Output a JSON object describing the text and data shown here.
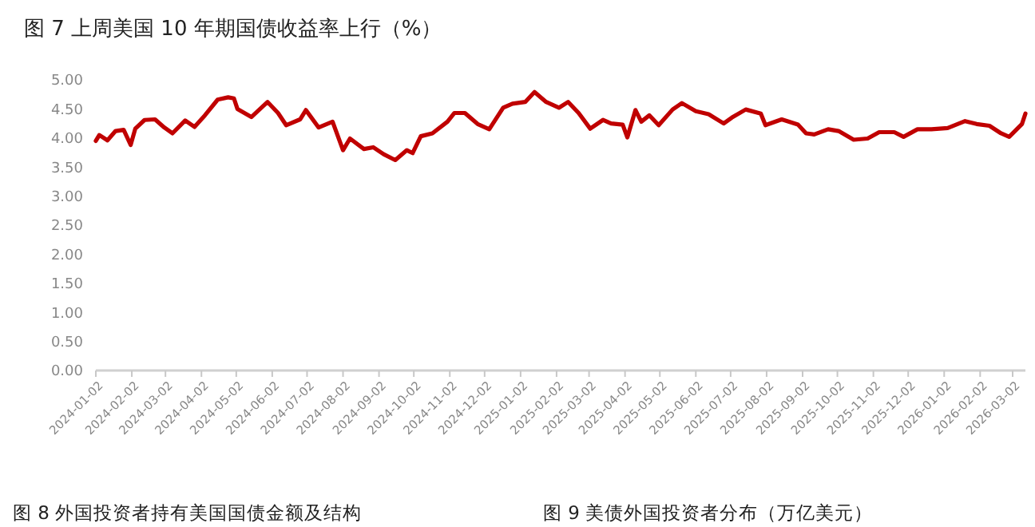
{
  "chart_data": {
    "type": "line",
    "title": "图 7  上周美国 10 年期国债收益率上行（%）",
    "x": [
      "2024-01-02",
      "2024-01-05",
      "2024-01-12",
      "2024-01-19",
      "2024-01-26",
      "2024-02-01",
      "2024-02-05",
      "2024-02-13",
      "2024-02-22",
      "2024-03-01",
      "2024-03-08",
      "2024-03-19",
      "2024-03-27",
      "2024-04-05",
      "2024-04-16",
      "2024-04-25",
      "2024-04-30",
      "2024-05-03",
      "2024-05-15",
      "2024-05-29",
      "2024-06-07",
      "2024-06-14",
      "2024-06-26",
      "2024-07-01",
      "2024-07-12",
      "2024-07-24",
      "2024-08-02",
      "2024-08-08",
      "2024-08-20",
      "2024-08-28",
      "2024-09-06",
      "2024-09-16",
      "2024-09-26",
      "2024-10-01",
      "2024-10-08",
      "2024-10-18",
      "2024-10-31",
      "2024-11-06",
      "2024-11-15",
      "2024-11-26",
      "2024-12-06",
      "2024-12-18",
      "2024-12-26",
      "2025-01-06",
      "2025-01-14",
      "2025-01-24",
      "2025-02-04",
      "2025-02-12",
      "2025-02-21",
      "2025-03-03",
      "2025-03-14",
      "2025-03-21",
      "2025-03-31",
      "2025-04-04",
      "2025-04-11",
      "2025-04-16",
      "2025-04-23",
      "2025-05-01",
      "2025-05-13",
      "2025-05-21",
      "2025-06-02",
      "2025-06-13",
      "2025-06-26",
      "2025-07-03",
      "2025-07-15",
      "2025-07-28",
      "2025-08-01",
      "2025-08-15",
      "2025-08-29",
      "2025-09-05",
      "2025-09-12",
      "2025-09-24",
      "2025-10-03",
      "2025-10-16",
      "2025-10-28",
      "2025-11-07",
      "2025-11-20",
      "2025-11-28",
      "2025-12-10",
      "2025-12-22",
      "2026-01-05",
      "2026-01-20",
      "2026-01-30",
      "2026-02-10",
      "2026-02-20",
      "2026-02-27",
      "2026-03-04",
      "2026-03-10",
      "2026-03-13"
    ],
    "series": [
      {
        "color": "#c00000",
        "values": [
          3.95,
          4.05,
          3.96,
          4.12,
          4.14,
          3.88,
          4.16,
          4.31,
          4.32,
          4.18,
          4.08,
          4.3,
          4.19,
          4.39,
          4.66,
          4.7,
          4.68,
          4.5,
          4.36,
          4.62,
          4.43,
          4.22,
          4.32,
          4.48,
          4.18,
          4.28,
          3.79,
          3.99,
          3.81,
          3.84,
          3.72,
          3.62,
          3.79,
          3.74,
          4.03,
          4.08,
          4.28,
          4.43,
          4.43,
          4.24,
          4.15,
          4.52,
          4.59,
          4.62,
          4.79,
          4.62,
          4.52,
          4.62,
          4.43,
          4.16,
          4.31,
          4.25,
          4.23,
          4.01,
          4.48,
          4.28,
          4.39,
          4.22,
          4.49,
          4.6,
          4.46,
          4.41,
          4.25,
          4.35,
          4.49,
          4.42,
          4.22,
          4.32,
          4.23,
          4.08,
          4.06,
          4.15,
          4.12,
          3.97,
          3.99,
          4.1,
          4.1,
          4.02,
          4.15,
          4.15,
          4.17,
          4.29,
          4.24,
          4.21,
          4.08,
          4.02,
          4.12,
          4.24,
          4.42
        ]
      }
    ],
    "xlim": [
      "2024-01-02",
      "2026-03-13"
    ],
    "xticks": [
      "2024-01-02",
      "2024-02-02",
      "2024-03-02",
      "2024-04-02",
      "2024-05-02",
      "2024-06-02",
      "2024-07-02",
      "2024-08-02",
      "2024-09-02",
      "2024-10-02",
      "2024-11-02",
      "2024-12-02",
      "2025-01-02",
      "2025-02-02",
      "2025-03-02",
      "2025-04-02",
      "2025-05-02",
      "2025-06-02",
      "2025-07-02",
      "2025-08-02",
      "2025-09-02",
      "2025-10-02",
      "2025-11-02",
      "2025-12-02",
      "2026-01-02",
      "2026-02-02",
      "2026-03-02"
    ],
    "ylim": [
      0,
      5
    ],
    "yticks": [
      {
        "value": 0,
        "label": "0.00"
      },
      {
        "value": 0.5,
        "label": "0.50"
      },
      {
        "value": 1,
        "label": "1.00"
      },
      {
        "value": 1.5,
        "label": "1.50"
      },
      {
        "value": 2,
        "label": "2.00"
      },
      {
        "value": 2.5,
        "label": "2.50"
      },
      {
        "value": 3,
        "label": "3.00"
      },
      {
        "value": 3.5,
        "label": "3.50"
      },
      {
        "value": 4,
        "label": "4.00"
      },
      {
        "value": 4.5,
        "label": "4.50"
      },
      {
        "value": 5,
        "label": "5.00"
      }
    ],
    "marker": "none",
    "line_style": "solid",
    "annotations": [
      "图 8  外国投资者持有美国国债金额及结构",
      "图 9  美债外国投资者分布（万亿美元）"
    ]
  }
}
